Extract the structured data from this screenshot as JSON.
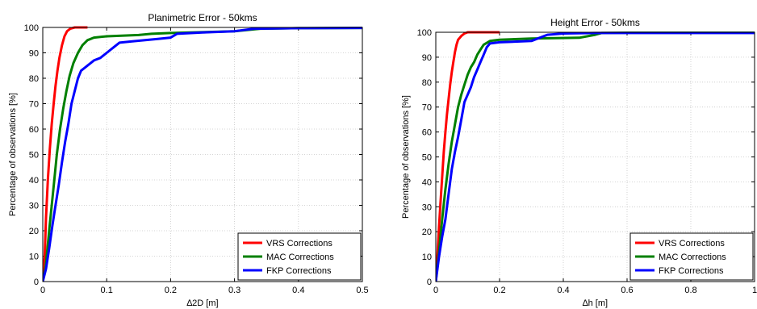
{
  "chart_data": [
    {
      "type": "line",
      "title": "Planimetric Error - 50kms",
      "xlabel": "∆2D [m]",
      "ylabel": "Percentage of observations [%]",
      "xlim": [
        0,
        0.5
      ],
      "ylim": [
        0,
        100
      ],
      "xticks": [
        "0",
        "0.1",
        "0.2",
        "0.3",
        "0.4",
        "0.5"
      ],
      "yticks": [
        "0",
        "10",
        "20",
        "30",
        "40",
        "50",
        "60",
        "70",
        "80",
        "90",
        "100"
      ],
      "grid": true,
      "legend_position": "bottom-right",
      "series": [
        {
          "name": "VRS Corrections",
          "color": "#ff0000",
          "points": [
            [
              0,
              0
            ],
            [
              0.003,
              10
            ],
            [
              0.005,
              25
            ],
            [
              0.008,
              40
            ],
            [
              0.011,
              52
            ],
            [
              0.014,
              62
            ],
            [
              0.017,
              70
            ],
            [
              0.02,
              77
            ],
            [
              0.023,
              83
            ],
            [
              0.026,
              88
            ],
            [
              0.03,
              93
            ],
            [
              0.034,
              96.5
            ],
            [
              0.038,
              98.5
            ],
            [
              0.043,
              99.5
            ],
            [
              0.05,
              100
            ],
            [
              0.07,
              100
            ]
          ]
        },
        {
          "name": "MAC Corrections",
          "color": "#008000",
          "points": [
            [
              0,
              0
            ],
            [
              0.004,
              5
            ],
            [
              0.007,
              12
            ],
            [
              0.01,
              20
            ],
            [
              0.014,
              30
            ],
            [
              0.018,
              40
            ],
            [
              0.022,
              50
            ],
            [
              0.027,
              60
            ],
            [
              0.032,
              68
            ],
            [
              0.037,
              75
            ],
            [
              0.042,
              81
            ],
            [
              0.048,
              86
            ],
            [
              0.055,
              90
            ],
            [
              0.062,
              93
            ],
            [
              0.07,
              95
            ],
            [
              0.08,
              96
            ],
            [
              0.1,
              96.5
            ],
            [
              0.15,
              97
            ],
            [
              0.17,
              97.5
            ],
            [
              0.2,
              97.8
            ],
            [
              0.3,
              98.5
            ],
            [
              0.34,
              99.5
            ],
            [
              0.4,
              99.7
            ],
            [
              0.5,
              99.8
            ]
          ]
        },
        {
          "name": "FKP Corrections",
          "color": "#0000ff",
          "points": [
            [
              0,
              0
            ],
            [
              0.005,
              5
            ],
            [
              0.01,
              13
            ],
            [
              0.015,
              22
            ],
            [
              0.02,
              30
            ],
            [
              0.025,
              38
            ],
            [
              0.03,
              47
            ],
            [
              0.035,
              55
            ],
            [
              0.04,
              62
            ],
            [
              0.045,
              70
            ],
            [
              0.05,
              75
            ],
            [
              0.055,
              80
            ],
            [
              0.06,
              83
            ],
            [
              0.065,
              84
            ],
            [
              0.07,
              85
            ],
            [
              0.08,
              87
            ],
            [
              0.09,
              88
            ],
            [
              0.1,
              90
            ],
            [
              0.11,
              92
            ],
            [
              0.12,
              94
            ],
            [
              0.14,
              94.5
            ],
            [
              0.16,
              95
            ],
            [
              0.18,
              95.5
            ],
            [
              0.2,
              96
            ],
            [
              0.21,
              97.5
            ],
            [
              0.25,
              98
            ],
            [
              0.3,
              98.5
            ],
            [
              0.33,
              99.5
            ],
            [
              0.4,
              99.7
            ],
            [
              0.5,
              99.8
            ]
          ]
        }
      ]
    },
    {
      "type": "line",
      "title": "Height Error - 50kms",
      "xlabel": "∆h [m]",
      "ylabel": "Percentage of observations [%]",
      "xlim": [
        0,
        1
      ],
      "ylim": [
        0,
        100
      ],
      "xticks": [
        "0",
        "0.2",
        "0.4",
        "0.6",
        "0.8",
        "1"
      ],
      "yticks": [
        "0",
        "10",
        "20",
        "30",
        "40",
        "50",
        "60",
        "70",
        "80",
        "90",
        "100"
      ],
      "grid": true,
      "legend_position": "bottom-right",
      "series": [
        {
          "name": "VRS Corrections",
          "color": "#ff0000",
          "points": [
            [
              0,
              0
            ],
            [
              0.005,
              10
            ],
            [
              0.01,
              22
            ],
            [
              0.015,
              32
            ],
            [
              0.02,
              42
            ],
            [
              0.025,
              52
            ],
            [
              0.03,
              60
            ],
            [
              0.035,
              67
            ],
            [
              0.04,
              73
            ],
            [
              0.045,
              79
            ],
            [
              0.05,
              84
            ],
            [
              0.055,
              88
            ],
            [
              0.06,
              92
            ],
            [
              0.065,
              95
            ],
            [
              0.07,
              97
            ],
            [
              0.08,
              98.5
            ],
            [
              0.09,
              99.5
            ],
            [
              0.1,
              100
            ],
            [
              0.2,
              100
            ]
          ]
        },
        {
          "name": "MAC Corrections",
          "color": "#008000",
          "points": [
            [
              0,
              0
            ],
            [
              0.01,
              12
            ],
            [
              0.02,
              25
            ],
            [
              0.03,
              37
            ],
            [
              0.04,
              47
            ],
            [
              0.05,
              56
            ],
            [
              0.06,
              63
            ],
            [
              0.07,
              70
            ],
            [
              0.08,
              75
            ],
            [
              0.09,
              79
            ],
            [
              0.1,
              83
            ],
            [
              0.11,
              86
            ],
            [
              0.12,
              88
            ],
            [
              0.13,
              91
            ],
            [
              0.14,
              93
            ],
            [
              0.15,
              95
            ],
            [
              0.17,
              96.5
            ],
            [
              0.2,
              97
            ],
            [
              0.3,
              97.5
            ],
            [
              0.45,
              97.8
            ],
            [
              0.5,
              99
            ],
            [
              0.52,
              99.7
            ],
            [
              0.6,
              99.8
            ],
            [
              1,
              99.8
            ]
          ]
        },
        {
          "name": "FKP Corrections",
          "color": "#0000ff",
          "points": [
            [
              0,
              0
            ],
            [
              0.01,
              10
            ],
            [
              0.02,
              18
            ],
            [
              0.03,
              25
            ],
            [
              0.04,
              35
            ],
            [
              0.05,
              45
            ],
            [
              0.06,
              52
            ],
            [
              0.07,
              58
            ],
            [
              0.08,
              65
            ],
            [
              0.09,
              72
            ],
            [
              0.1,
              75
            ],
            [
              0.11,
              78
            ],
            [
              0.12,
              82
            ],
            [
              0.13,
              85
            ],
            [
              0.14,
              88
            ],
            [
              0.15,
              91
            ],
            [
              0.16,
              94
            ],
            [
              0.17,
              95.5
            ],
            [
              0.2,
              96
            ],
            [
              0.3,
              96.5
            ],
            [
              0.32,
              97.5
            ],
            [
              0.35,
              99
            ],
            [
              0.4,
              99.5
            ],
            [
              0.5,
              99.7
            ],
            [
              1,
              99.7
            ]
          ]
        }
      ]
    }
  ]
}
